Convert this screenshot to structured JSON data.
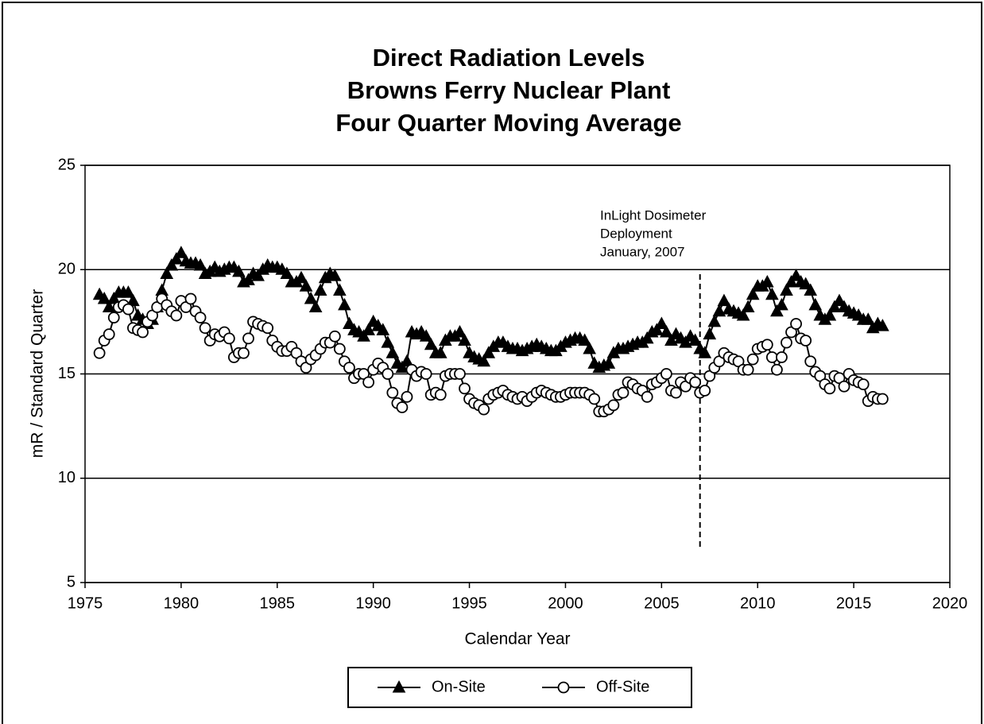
{
  "chart_data": {
    "type": "line",
    "title": [
      "Direct Radiation Levels",
      "Browns Ferry Nuclear Plant",
      "Four Quarter Moving Average"
    ],
    "x_label": "Calendar Year",
    "y_label": "mR / Standard Quarter",
    "xlim": [
      1975,
      2020
    ],
    "xticks": [
      1975,
      1980,
      1985,
      1990,
      1995,
      2000,
      2005,
      2010,
      2015,
      2020
    ],
    "ylim": [
      5,
      25
    ],
    "yticks": [
      5,
      10,
      15,
      20,
      25
    ],
    "grid": true,
    "legend": "bottom",
    "annotation": {
      "text": [
        "InLight Dosimeter",
        "Deployment",
        "January, 2007"
      ],
      "x": 2007
    },
    "x": [
      1975.75,
      1976,
      1976.25,
      1976.5,
      1976.75,
      1977,
      1977.25,
      1977.5,
      1977.75,
      1978,
      1978.25,
      1978.5,
      1978.75,
      1979,
      1979.25,
      1979.5,
      1979.75,
      1980,
      1980.25,
      1980.5,
      1980.75,
      1981,
      1981.25,
      1981.5,
      1981.75,
      1982,
      1982.25,
      1982.5,
      1982.75,
      1983,
      1983.25,
      1983.5,
      1983.75,
      1984,
      1984.25,
      1984.5,
      1984.75,
      1985,
      1985.25,
      1985.5,
      1985.75,
      1986,
      1986.25,
      1986.5,
      1986.75,
      1987,
      1987.25,
      1987.5,
      1987.75,
      1988,
      1988.25,
      1988.5,
      1988.75,
      1989,
      1989.25,
      1989.5,
      1989.75,
      1990,
      1990.25,
      1990.5,
      1990.75,
      1991,
      1991.25,
      1991.5,
      1991.75,
      1992,
      1992.25,
      1992.5,
      1992.75,
      1993,
      1993.25,
      1993.5,
      1993.75,
      1994,
      1994.25,
      1994.5,
      1994.75,
      1995,
      1995.25,
      1995.5,
      1995.75,
      1996,
      1996.25,
      1996.5,
      1996.75,
      1997,
      1997.25,
      1997.5,
      1997.75,
      1998,
      1998.25,
      1998.5,
      1998.75,
      1999,
      1999.25,
      1999.5,
      1999.75,
      2000,
      2000.25,
      2000.5,
      2000.75,
      2001,
      2001.25,
      2001.5,
      2001.75,
      2002,
      2002.25,
      2002.5,
      2002.75,
      2003,
      2003.25,
      2003.5,
      2003.75,
      2004,
      2004.25,
      2004.5,
      2004.75,
      2005,
      2005.25,
      2005.5,
      2005.75,
      2006,
      2006.25,
      2006.5,
      2006.75,
      2007,
      2007.25,
      2007.5,
      2007.75,
      2008,
      2008.25,
      2008.5,
      2008.75,
      2009,
      2009.25,
      2009.5,
      2009.75,
      2010,
      2010.25,
      2010.5,
      2010.75,
      2011,
      2011.25,
      2011.5,
      2011.75,
      2012,
      2012.25,
      2012.5,
      2012.75,
      2013,
      2013.25,
      2013.5,
      2013.75,
      2014,
      2014.25,
      2014.5,
      2014.75,
      2015,
      2015.25,
      2015.5,
      2015.75,
      2016,
      2016.25,
      2016.5
    ],
    "series": [
      {
        "name": "On-Site",
        "color": "#000000",
        "marker": "triangle",
        "values": [
          18.8,
          18.6,
          18.2,
          18.6,
          18.9,
          18.9,
          18.9,
          18.5,
          17.8,
          17.6,
          17.4,
          17.6,
          18.2,
          19.0,
          19.8,
          20.2,
          20.5,
          20.8,
          20.4,
          20.3,
          20.3,
          20.2,
          19.8,
          19.9,
          20.1,
          19.9,
          20.0,
          20.1,
          20.1,
          19.9,
          19.4,
          19.5,
          19.8,
          19.7,
          20.0,
          20.2,
          20.1,
          20.1,
          20.0,
          19.8,
          19.4,
          19.4,
          19.6,
          19.2,
          18.6,
          18.2,
          19.0,
          19.6,
          19.8,
          19.7,
          19.0,
          18.3,
          17.4,
          17.1,
          17.0,
          16.8,
          17.1,
          17.5,
          17.3,
          17.1,
          16.5,
          16.0,
          15.5,
          15.3,
          15.6,
          17.0,
          16.9,
          17.0,
          16.8,
          16.4,
          16.0,
          16.0,
          16.6,
          16.8,
          16.8,
          17.0,
          16.6,
          16.0,
          15.8,
          15.7,
          15.6,
          16.0,
          16.3,
          16.5,
          16.5,
          16.3,
          16.2,
          16.2,
          16.1,
          16.2,
          16.3,
          16.4,
          16.3,
          16.2,
          16.1,
          16.1,
          16.3,
          16.5,
          16.6,
          16.7,
          16.7,
          16.6,
          16.2,
          15.5,
          15.3,
          15.4,
          15.5,
          16.0,
          16.2,
          16.2,
          16.3,
          16.4,
          16.5,
          16.5,
          16.7,
          17.0,
          17.1,
          17.4,
          17.0,
          16.6,
          16.9,
          16.7,
          16.5,
          16.8,
          16.6,
          16.2,
          16.0,
          16.9,
          17.5,
          18.0,
          18.5,
          18.1,
          18.0,
          17.9,
          17.8,
          18.2,
          18.8,
          19.2,
          19.2,
          19.4,
          18.8,
          18.0,
          18.3,
          19.0,
          19.4,
          19.7,
          19.4,
          19.3,
          19.0,
          18.3,
          17.8,
          17.6,
          17.8,
          18.2,
          18.5,
          18.2,
          18.0,
          17.9,
          17.8,
          17.6,
          17.6,
          17.2,
          17.4,
          17.3
        ]
      },
      {
        "name": "Off-Site",
        "color": "#000000",
        "marker": "circle",
        "values": [
          16.0,
          16.6,
          16.9,
          17.7,
          18.2,
          18.3,
          18.1,
          17.2,
          17.1,
          17.0,
          17.5,
          17.8,
          18.2,
          18.6,
          18.3,
          18.0,
          17.8,
          18.5,
          18.2,
          18.6,
          18.0,
          17.7,
          17.2,
          16.6,
          16.9,
          16.8,
          17.0,
          16.7,
          15.8,
          16.0,
          16.0,
          16.7,
          17.5,
          17.4,
          17.3,
          17.2,
          16.6,
          16.3,
          16.1,
          16.1,
          16.3,
          16.0,
          15.6,
          15.3,
          15.7,
          15.9,
          16.2,
          16.5,
          16.5,
          16.8,
          16.2,
          15.6,
          15.3,
          14.8,
          15.0,
          15.0,
          14.6,
          15.2,
          15.5,
          15.3,
          15.0,
          14.1,
          13.6,
          13.4,
          13.9,
          15.2,
          14.9,
          15.1,
          15.0,
          14.0,
          14.1,
          14.0,
          14.9,
          15.0,
          15.0,
          15.0,
          14.3,
          13.8,
          13.6,
          13.5,
          13.3,
          13.8,
          14.0,
          14.1,
          14.2,
          14.0,
          13.9,
          13.8,
          13.9,
          13.7,
          13.9,
          14.1,
          14.2,
          14.1,
          14.0,
          13.9,
          13.9,
          14.0,
          14.1,
          14.1,
          14.1,
          14.1,
          14.0,
          13.8,
          13.2,
          13.2,
          13.3,
          13.5,
          14.0,
          14.1,
          14.6,
          14.5,
          14.3,
          14.2,
          13.9,
          14.5,
          14.6,
          14.8,
          15.0,
          14.2,
          14.1,
          14.6,
          14.4,
          14.8,
          14.6,
          14.1,
          14.2,
          14.9,
          15.3,
          15.6,
          16.0,
          15.8,
          15.7,
          15.6,
          15.2,
          15.2,
          15.7,
          16.2,
          16.3,
          16.4,
          15.8,
          15.2,
          15.8,
          16.5,
          17.0,
          17.4,
          16.7,
          16.6,
          15.6,
          15.1,
          14.9,
          14.5,
          14.3,
          14.9,
          14.8,
          14.4,
          15.0,
          14.7,
          14.6,
          14.5,
          13.7,
          13.9,
          13.8,
          13.8
        ]
      }
    ]
  }
}
